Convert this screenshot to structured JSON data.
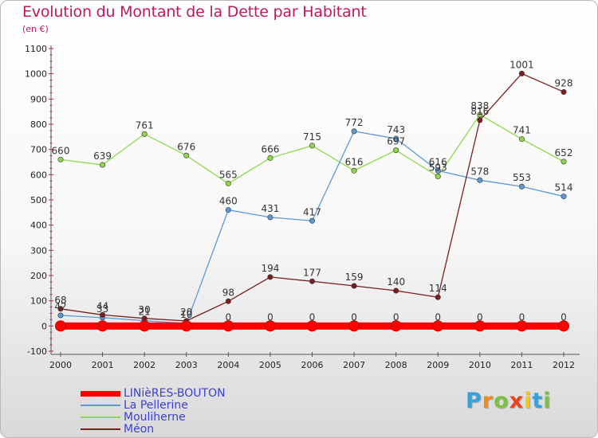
{
  "title": "Evolution du Montant de la Dette par Habitant",
  "subtitle": "(en €)",
  "logo": "Proxiti",
  "chart_data": {
    "type": "line",
    "x": [
      "2000",
      "2001",
      "2002",
      "2003",
      "2004",
      "2005",
      "2006",
      "2007",
      "2008",
      "2009",
      "2010",
      "2011",
      "2012"
    ],
    "ylim": [
      -100,
      1100
    ],
    "yticks": [
      -100,
      0,
      100,
      200,
      300,
      400,
      500,
      600,
      700,
      800,
      900,
      1000,
      1100
    ],
    "grid": false,
    "legend_position": "bottom-left",
    "series": [
      {
        "name": "LINièRES-BOUTON",
        "color": "#ff0000",
        "values": [
          0,
          0,
          0,
          0,
          0,
          0,
          0,
          0,
          0,
          0,
          0,
          0,
          0
        ],
        "labels": [
          "",
          "",
          "",
          "",
          "0",
          "0",
          "0",
          "0",
          "0",
          "0",
          "0",
          "0",
          "0"
        ]
      },
      {
        "name": "La Pellerine",
        "color": "#5c9ad6",
        "values": [
          42,
          33,
          21,
          10,
          460,
          431,
          417,
          772,
          743,
          616,
          578,
          553,
          514
        ],
        "labels": [
          "42",
          "33",
          "21",
          "10",
          "460",
          "431",
          "417",
          "772",
          "743",
          "616",
          "578",
          "553",
          "514"
        ]
      },
      {
        "name": "Mouliherne",
        "color": "#8ed84a",
        "values": [
          660,
          639,
          761,
          676,
          565,
          666,
          715,
          616,
          697,
          593,
          838,
          741,
          652
        ],
        "labels": [
          "660",
          "639",
          "761",
          "676",
          "565",
          "666",
          "715",
          "616",
          "697",
          "593",
          "838",
          "741",
          "652"
        ]
      },
      {
        "name": "Méon",
        "color": "#7a1f1f",
        "values": [
          68,
          44,
          30,
          20,
          98,
          194,
          177,
          159,
          140,
          114,
          816,
          1001,
          928
        ],
        "labels": [
          "68",
          "44",
          "30",
          "20",
          "98",
          "194",
          "177",
          "159",
          "140",
          "114",
          "816",
          "1001",
          "928"
        ]
      }
    ]
  }
}
